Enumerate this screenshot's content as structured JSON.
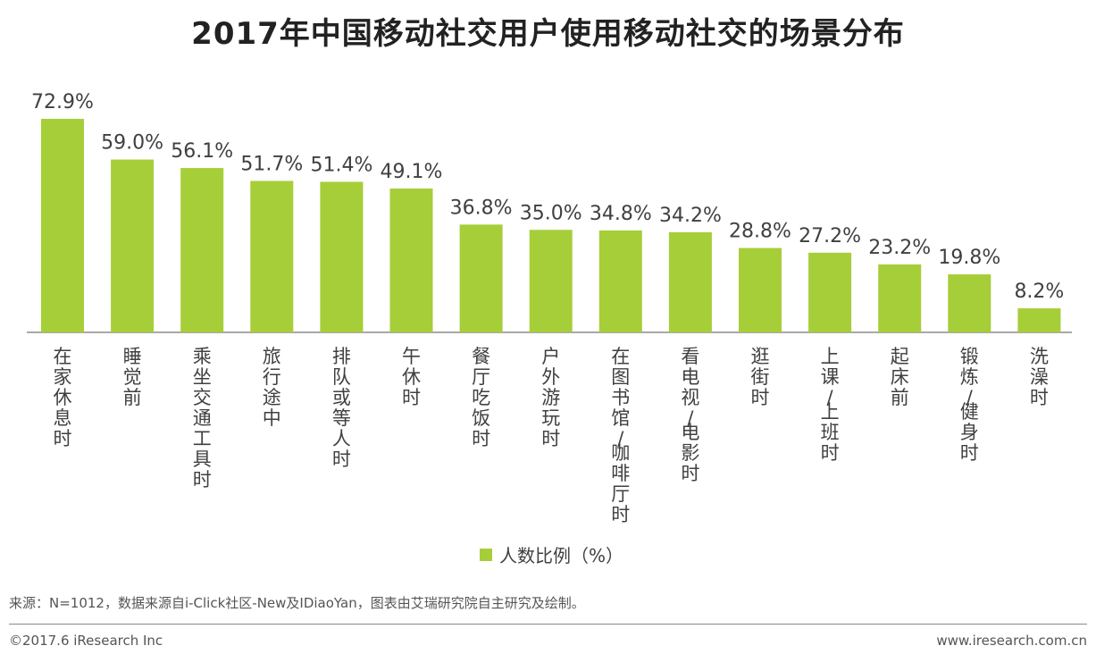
{
  "colors": {
    "bar": "#a6ce39",
    "axis": "#8c8c8c",
    "label": "#404040"
  },
  "chart_data": {
    "type": "bar",
    "title": "2017年中国移动社交用户使用移动社交的场景分布",
    "categories": [
      "在家休息时",
      "睡觉前",
      "乘坐交通工具时",
      "旅行途中",
      "排队或等人时",
      "午休时",
      "餐厅吃饭时",
      "户外游玩时",
      "在图书馆/咖啡厅时",
      "看电视/电影时",
      "逛街时",
      "上课/上班时",
      "起床前",
      "锻炼/健身时",
      "洗澡时"
    ],
    "series": [
      {
        "name": "人数比例（%）",
        "values": [
          72.9,
          59.0,
          56.1,
          51.7,
          51.4,
          49.1,
          36.8,
          35.0,
          34.8,
          34.2,
          28.8,
          27.2,
          23.2,
          19.8,
          8.2
        ]
      }
    ],
    "data_labels": [
      "72.9%",
      "59.0%",
      "56.1%",
      "51.7%",
      "51.4%",
      "49.1%",
      "36.8%",
      "35.0%",
      "34.8%",
      "34.2%",
      "28.8%",
      "27.2%",
      "23.2%",
      "19.8%",
      "8.2%"
    ],
    "ylim": [
      0,
      80
    ],
    "grid": false,
    "legend_position": "bottom"
  },
  "footer": {
    "source": "来源：N=1012，数据来源自i-Click社区-New及IDiaoYan，图表由艾瑞研究院自主研究及绘制。",
    "copyright": "©2017.6 iResearch Inc",
    "website": "www.iresearch.com.cn"
  }
}
